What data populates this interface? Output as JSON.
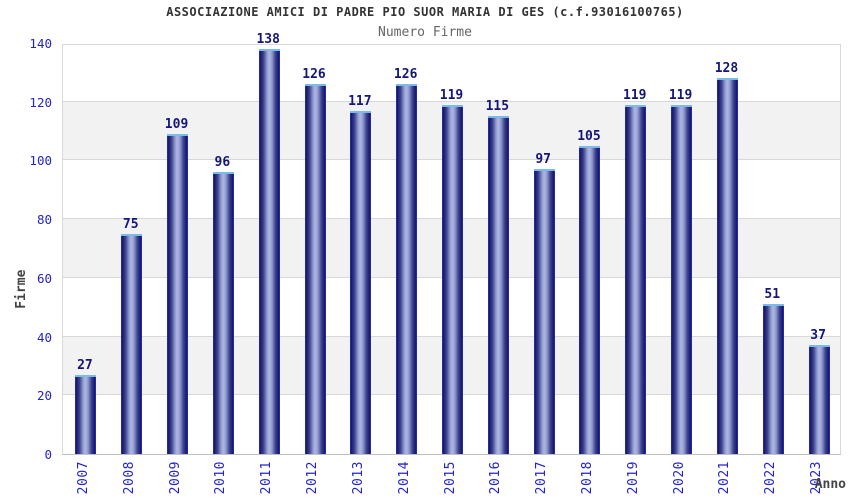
{
  "chart_data": {
    "type": "bar",
    "title": "ASSOCIAZIONE AMICI DI PADRE PIO SUOR MARIA DI GES (c.f.93016100765)",
    "subtitle": "Numero Firme",
    "xlabel": "Anno",
    "ylabel": "Firme",
    "categories": [
      "2007",
      "2008",
      "2009",
      "2010",
      "2011",
      "2012",
      "2013",
      "2014",
      "2015",
      "2016",
      "2017",
      "2018",
      "2019",
      "2020",
      "2021",
      "2022",
      "2023"
    ],
    "values": [
      27,
      75,
      109,
      96,
      138,
      126,
      117,
      126,
      119,
      115,
      97,
      105,
      119,
      119,
      128,
      51,
      37
    ],
    "ylim": [
      0,
      140
    ],
    "ytick_step": 20,
    "grid": "horizontal",
    "legend_position": "none",
    "colors": {
      "bar_edge": "#2633d9",
      "bar_dark": "#181868",
      "bar_light": "#aab2e0",
      "bar_top_cap": "#79bce8",
      "tick_label": "#2424cc",
      "value_label": "#15157a",
      "gridline": "#d8d8d8",
      "band_fill": "#f2f2f2",
      "title": "#333333",
      "subtitle": "#666666",
      "axis_title": "#444444"
    }
  }
}
